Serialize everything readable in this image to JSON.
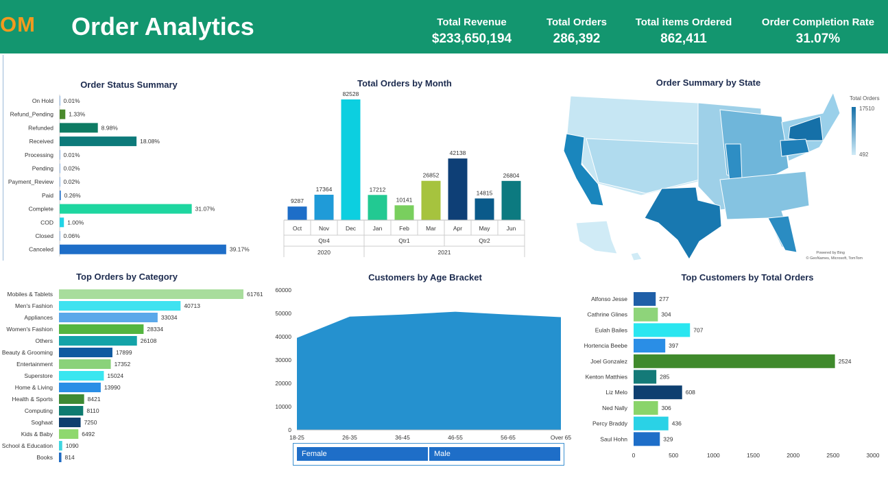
{
  "header": {
    "logo": "OM",
    "title": "Order Analytics",
    "kpis": [
      {
        "label": "Total Revenue",
        "value": "$233,650,194"
      },
      {
        "label": "Total Orders",
        "value": "286,392"
      },
      {
        "label": "Total items Ordered",
        "value": "862,411"
      },
      {
        "label": "Order Completion Rate",
        "value": "31.07%"
      }
    ]
  },
  "colors": {
    "header_bg": "#13966f",
    "logo": "#f39a1e",
    "title_text": "#1b2a4e",
    "area_fill": "#2591cf",
    "legend_fill": "#1e6ec8"
  },
  "chart_data": [
    {
      "id": "status",
      "type": "bar",
      "orientation": "horizontal",
      "title": "Order Status Summary",
      "categories": [
        "On Hold",
        "Refund_Pending",
        "Refunded",
        "Received",
        "Processing",
        "Pending",
        "Payment_Review",
        "Paid",
        "Complete",
        "COD",
        "Closed",
        "Canceled"
      ],
      "values": [
        0.01,
        1.33,
        8.98,
        18.08,
        0.01,
        0.02,
        0.02,
        0.26,
        31.07,
        1.0,
        0.06,
        39.17
      ],
      "labels": [
        "0.01%",
        "1.33%",
        "8.98%",
        "18.08%",
        "0.01%",
        "0.02%",
        "0.02%",
        "0.26%",
        "31.07%",
        "1.00%",
        "0.06%",
        "39.17%"
      ],
      "colors": [
        "#1e6ec8",
        "#4a8a2c",
        "#0e7b63",
        "#0d7a7a",
        "#1e6ec8",
        "#1e6ec8",
        "#1e6ec8",
        "#1e6ec8",
        "#1ed6a0",
        "#22d4e6",
        "#1e6ec8",
        "#1e6ec8"
      ]
    },
    {
      "id": "month",
      "type": "bar",
      "title": "Total Orders by Month",
      "categories": [
        "Oct",
        "Nov",
        "Dec",
        "Jan",
        "Feb",
        "Mar",
        "Apr",
        "May",
        "Jun"
      ],
      "values": [
        9287,
        17364,
        82528,
        17212,
        10141,
        26852,
        42138,
        14815,
        26804
      ],
      "colors": [
        "#1e6ec8",
        "#1f9bd8",
        "#0ccfe0",
        "#22c992",
        "#79cf5e",
        "#a6c33e",
        "#0e3f76",
        "#0a5a8a",
        "#0c7a80"
      ],
      "quarters": [
        {
          "label": "Qtr4",
          "span": [
            0,
            2
          ]
        },
        {
          "label": "Qtr1",
          "span": [
            3,
            5
          ]
        },
        {
          "label": "Qtr2",
          "span": [
            6,
            8
          ]
        }
      ],
      "years": [
        {
          "label": "2020",
          "span": [
            0,
            2
          ]
        },
        {
          "label": "2021",
          "span": [
            3,
            8
          ]
        }
      ]
    },
    {
      "id": "state",
      "type": "map",
      "title": "Order Summary by State",
      "legend_title": "Total Orders",
      "legend_max": "17510",
      "legend_min": "492",
      "attribution_1": "Powered by Bing",
      "attribution_2": "© GeoNames, Microsoft, TomTom"
    },
    {
      "id": "category",
      "type": "bar",
      "orientation": "horizontal",
      "title": "Top Orders by Category",
      "categories": [
        "Mobiles & Tablets",
        "Men's Fashion",
        "Appliances",
        "Women's Fashion",
        "Others",
        "Beauty & Grooming",
        "Entertainment",
        "Superstore",
        "Home & Living",
        "Health & Sports",
        "Computing",
        "Soghaat",
        "Kids & Baby",
        "School & Education",
        "Books"
      ],
      "values": [
        61761,
        40713,
        33034,
        28334,
        26108,
        17899,
        17352,
        15024,
        13990,
        8421,
        8110,
        7250,
        6492,
        1090,
        814
      ],
      "colors": [
        "#a8dd9c",
        "#3fe2f0",
        "#5aa8ea",
        "#54b540",
        "#14a3a8",
        "#0f5aa0",
        "#8ad27a",
        "#3ae6f0",
        "#2a8ee6",
        "#3f8a34",
        "#0e7b70",
        "#0e3f6e",
        "#8ed86e",
        "#3fd6e0",
        "#1f6ac2"
      ]
    },
    {
      "id": "age",
      "type": "area",
      "title": "Customers by Age Bracket",
      "x": [
        "18-25",
        "26-35",
        "36-45",
        "46-55",
        "56-65",
        "Over 65"
      ],
      "values": [
        39500,
        48600,
        49500,
        50700,
        49500,
        48400
      ],
      "ylim": [
        0,
        60000
      ],
      "yticks": [
        0,
        10000,
        20000,
        30000,
        40000,
        50000,
        60000
      ],
      "legend": [
        "Female",
        "Male"
      ]
    },
    {
      "id": "customers",
      "type": "bar",
      "orientation": "horizontal",
      "title": "Top Customers by Total Orders",
      "categories": [
        "Alfonso Jesse",
        "Cathrine Glines",
        "Eulah Bailes",
        "Hortencia Beebe",
        "Joel Gonzalez",
        "Kenton Matthies",
        "Liz Melo",
        "Ned Nally",
        "Percy Braddy",
        "Saul Hohn"
      ],
      "values": [
        277,
        304,
        707,
        397,
        2524,
        285,
        608,
        306,
        436,
        329
      ],
      "colors": [
        "#1f5fa8",
        "#8ed47a",
        "#2ae6f0",
        "#2a8ee6",
        "#3f8a2c",
        "#147a78",
        "#0e3f70",
        "#8ad46a",
        "#2ad2e6",
        "#1e6ec8"
      ],
      "xlim": [
        0,
        3000
      ],
      "xticks": [
        0,
        500,
        1000,
        1500,
        2000,
        2500,
        3000
      ]
    }
  ]
}
